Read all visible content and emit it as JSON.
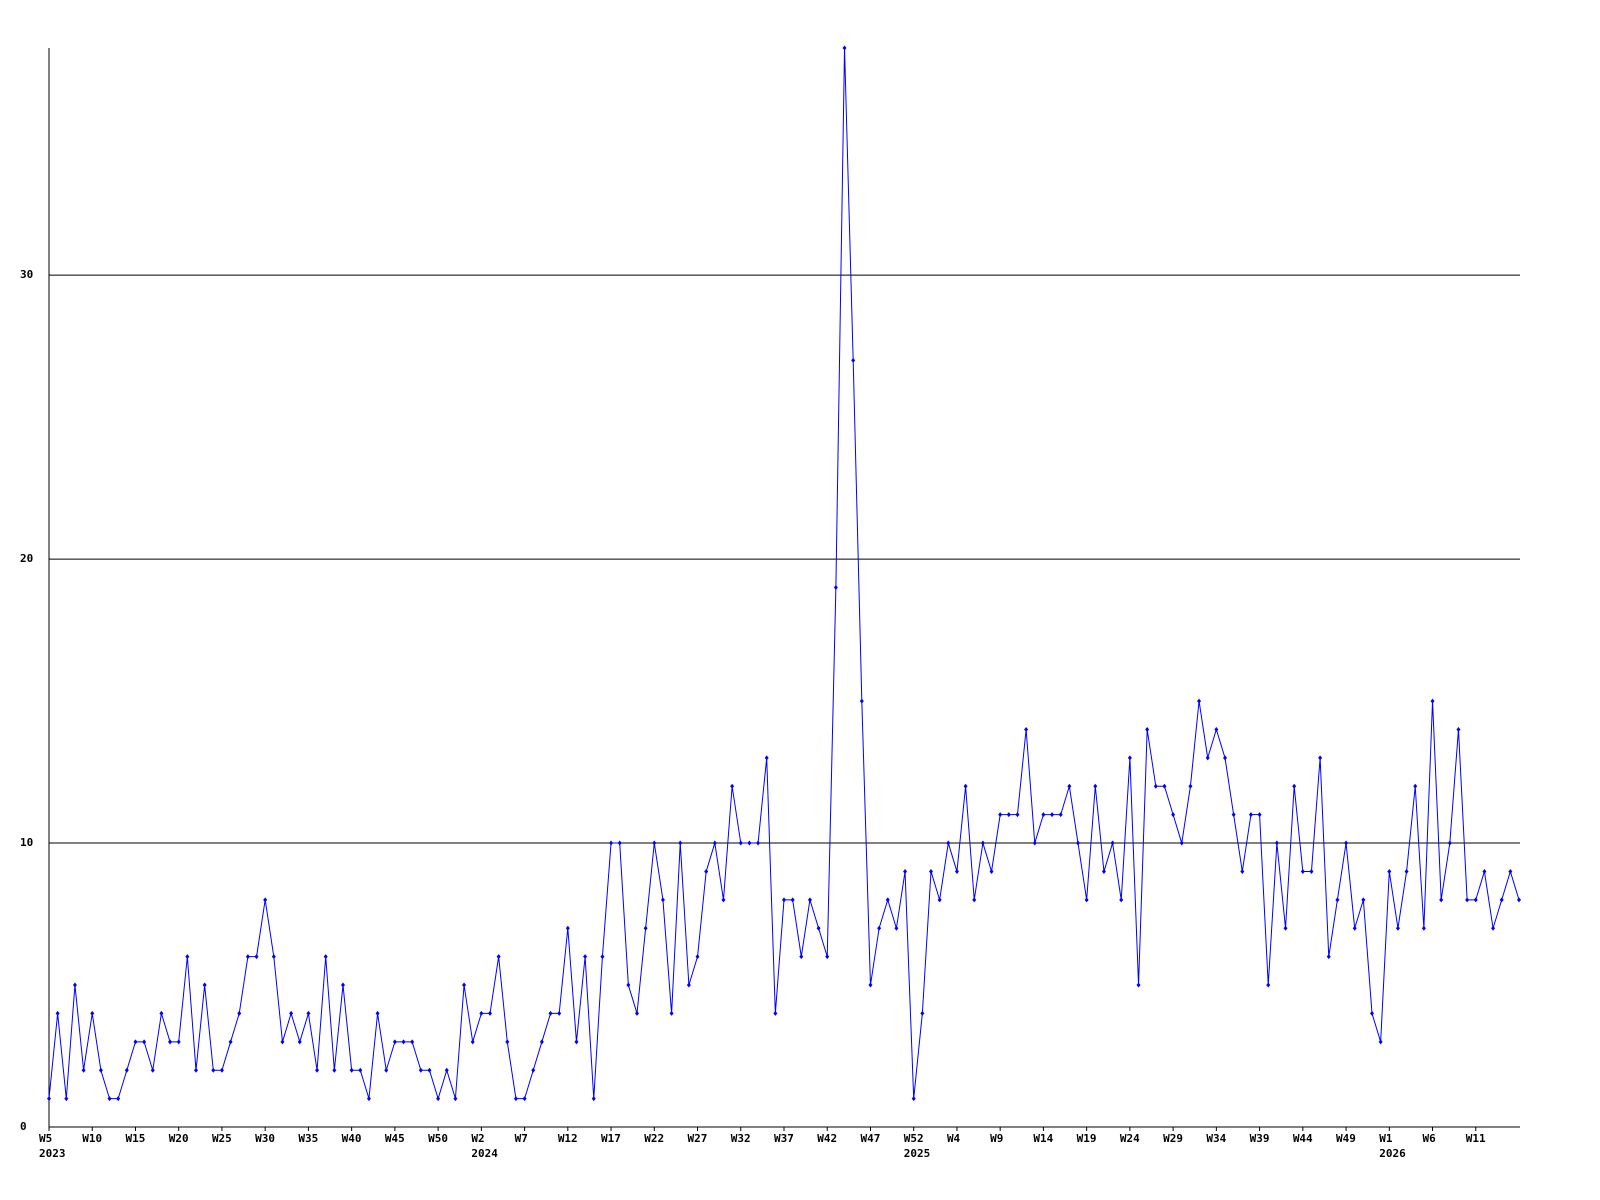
{
  "chart_data": {
    "type": "line",
    "color": "#0000ff",
    "grid": true,
    "ylim": [
      0,
      38
    ],
    "yticks": [
      0,
      10,
      20,
      30
    ],
    "categories": [
      "W5",
      null,
      null,
      null,
      null,
      "W10",
      null,
      null,
      null,
      null,
      "W15",
      null,
      null,
      null,
      null,
      "W20",
      null,
      null,
      null,
      null,
      "W25",
      null,
      null,
      null,
      null,
      "W30",
      null,
      null,
      null,
      null,
      "W35",
      null,
      null,
      null,
      null,
      "W40",
      null,
      null,
      null,
      null,
      "W45",
      null,
      null,
      null,
      null,
      "W50",
      null,
      null,
      null,
      null,
      "W2",
      null,
      null,
      null,
      null,
      "W7",
      null,
      null,
      null,
      null,
      "W12",
      null,
      null,
      null,
      null,
      "W17",
      null,
      null,
      null,
      null,
      "W22",
      null,
      null,
      null,
      null,
      "W27",
      null,
      null,
      null,
      null,
      "W32",
      null,
      null,
      null,
      null,
      "W37",
      null,
      null,
      null,
      null,
      "W42",
      null,
      null,
      null,
      null,
      "W47",
      null,
      null,
      null,
      null,
      "W52",
      null,
      null,
      null,
      null,
      "W4",
      null,
      null,
      null,
      null,
      "W9",
      null,
      null,
      null,
      null,
      "W14",
      null,
      null,
      null,
      null,
      "W19",
      null,
      null,
      null,
      null,
      "W24",
      null,
      null,
      null,
      null,
      "W29",
      null,
      null,
      null,
      null,
      "W34",
      null,
      null,
      null,
      null,
      "W39",
      null,
      null,
      null,
      null,
      "W44",
      null,
      null,
      null,
      null,
      "W49",
      null,
      null,
      null,
      null,
      "W1",
      null,
      null,
      null,
      null,
      "W6",
      null,
      null,
      null,
      null,
      "W11",
      null,
      null,
      null,
      null,
      null
    ],
    "year_labels": [
      "2023",
      null,
      null,
      null,
      null,
      null,
      null,
      null,
      null,
      null,
      null,
      null,
      null,
      null,
      null,
      null,
      null,
      null,
      null,
      null,
      null,
      null,
      null,
      null,
      null,
      null,
      null,
      null,
      null,
      null,
      null,
      null,
      null,
      null,
      null,
      null,
      null,
      null,
      null,
      null,
      null,
      null,
      null,
      null,
      null,
      null,
      null,
      null,
      null,
      null,
      "2024",
      null,
      null,
      null,
      null,
      null,
      null,
      null,
      null,
      null,
      null,
      null,
      null,
      null,
      null,
      null,
      null,
      null,
      null,
      null,
      null,
      null,
      null,
      null,
      null,
      null,
      null,
      null,
      null,
      null,
      null,
      null,
      null,
      null,
      null,
      null,
      null,
      null,
      null,
      null,
      null,
      null,
      null,
      null,
      null,
      null,
      null,
      null,
      null,
      null,
      "2025",
      null,
      null,
      null,
      null,
      null,
      null,
      null,
      null,
      null,
      null,
      null,
      null,
      null,
      null,
      null,
      null,
      null,
      null,
      null,
      null,
      null,
      null,
      null,
      null,
      null,
      null,
      null,
      null,
      null,
      null,
      null,
      null,
      null,
      null,
      null,
      null,
      null,
      null,
      null,
      null,
      null,
      null,
      null,
      null,
      null,
      null,
      null,
      null,
      null,
      null,
      null,
      null,
      null,
      null,
      "2026",
      null,
      null,
      null,
      null,
      null,
      null,
      null,
      null,
      null,
      null,
      null,
      null,
      null,
      null,
      null
    ],
    "series": [
      {
        "values": [
          1,
          4,
          1,
          5,
          2,
          4,
          2,
          1,
          1,
          2,
          3,
          3,
          2,
          4,
          3,
          3,
          6,
          2,
          5,
          2,
          2,
          3,
          4,
          6,
          6,
          8,
          6,
          3,
          4,
          3,
          4,
          2,
          6,
          2,
          5,
          2,
          2,
          1,
          4,
          2,
          3,
          3,
          3,
          2,
          2,
          1,
          2,
          1,
          5,
          3,
          4,
          4,
          6,
          3,
          1,
          1,
          2,
          3,
          4,
          4,
          7,
          3,
          6,
          1,
          6,
          10,
          10,
          5,
          4,
          7,
          10,
          8,
          4,
          10,
          5,
          6,
          9,
          10,
          8,
          12,
          10,
          10,
          10,
          13,
          4,
          8,
          8,
          6,
          8,
          7,
          6,
          19,
          38,
          27,
          15,
          5,
          7,
          8,
          7,
          9,
          1,
          4,
          9,
          8,
          10,
          9,
          12,
          8,
          10,
          9,
          11,
          11,
          11,
          14,
          10,
          11,
          11,
          11,
          12,
          10,
          8,
          12,
          9,
          10,
          8,
          13,
          5,
          14,
          12,
          12,
          11,
          10,
          12,
          15,
          13,
          14,
          13,
          11,
          9,
          11,
          11,
          5,
          10,
          7,
          12,
          9,
          9,
          13,
          6,
          8,
          10,
          7,
          8,
          4,
          3,
          9,
          7,
          9,
          12,
          7,
          15,
          8,
          10,
          14,
          8,
          8,
          9,
          7,
          8,
          9,
          8
        ]
      }
    ]
  }
}
